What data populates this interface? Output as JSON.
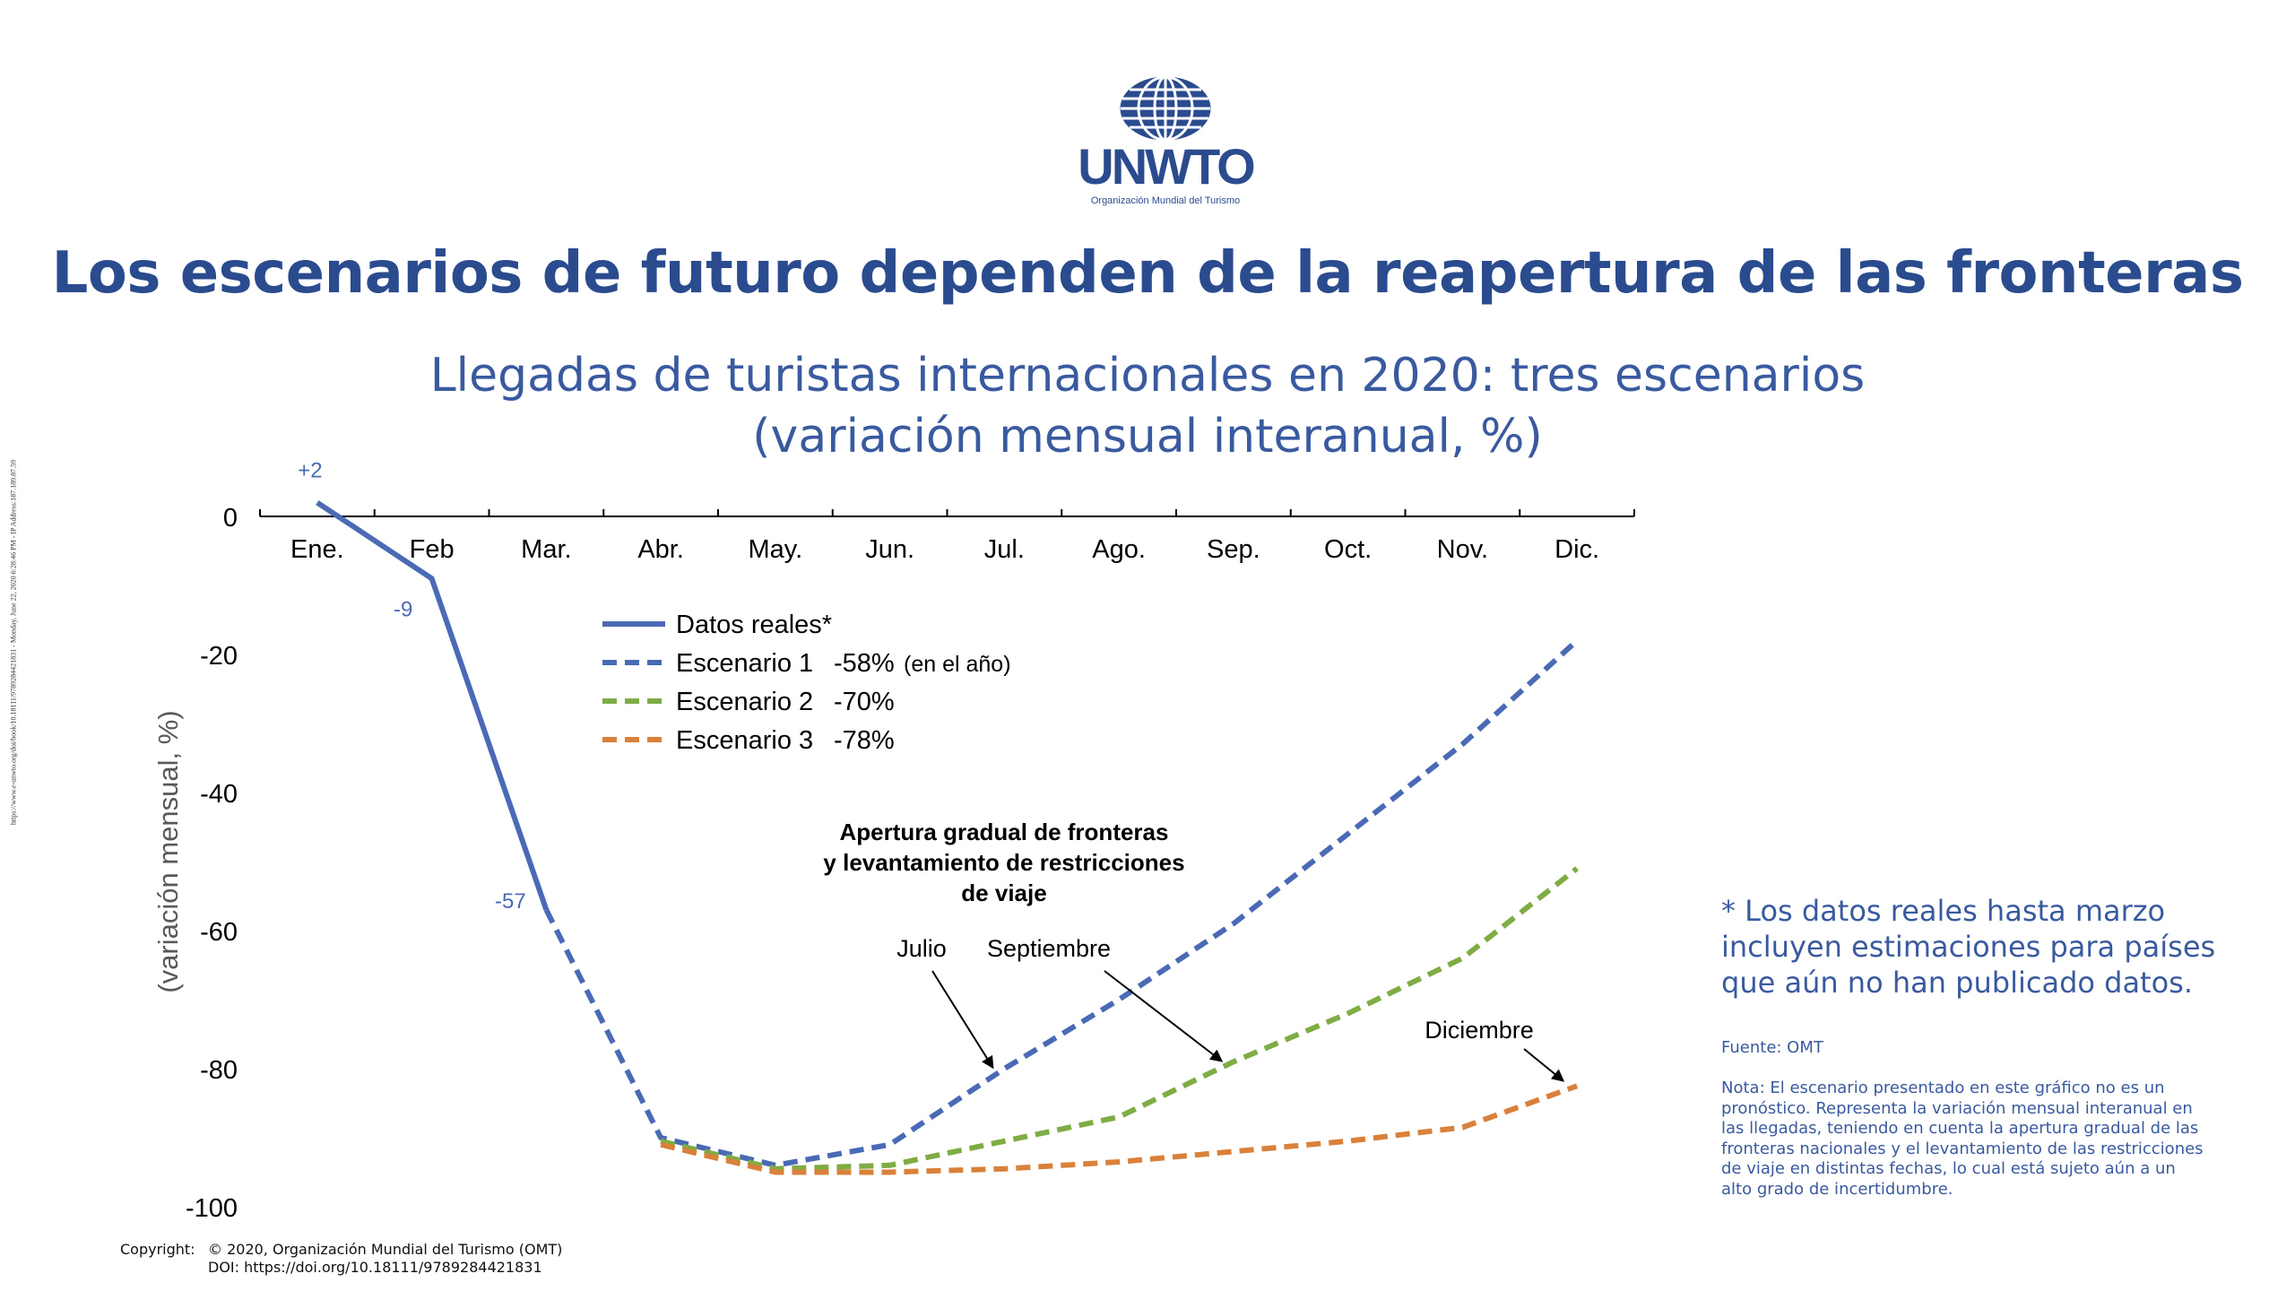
{
  "logo": {
    "name": "UNWTO",
    "subtitle": "Organización Mundial del Turismo"
  },
  "title": "Los escenarios de futuro dependen de la reapertura de las fronteras",
  "subtitle_line1": "Llegadas de turistas internacionales en 2020: tres escenarios",
  "subtitle_line2": "(variación mensual interanual, %)",
  "side_note": "* Los datos reales hasta marzo incluyen estimaciones para países que aún no han publicado datos.",
  "source": "Fuente: OMT",
  "nota": "Nota: El escenario presentado en este gráfico no es un pronóstico. Representa la variación mensual interanual en las llegadas, teniendo en cuenta la apertura gradual de las fronteras nacionales y el levantamiento de las restricciones de viaje en distintas fechas, lo cual está sujeto aún a un alto grado de incertidumbre.",
  "copyright_label": "Copyright:",
  "copyright_line1": "© 2020, Organización Mundial del Turismo (OMT)",
  "copyright_line2": "DOI: https://doi.org/10.18111/9789284421831",
  "vertical_url": "https://www.e-unwto.org/doi/book/10.18111/9789284421831 - Monday, June 22, 2020 6:28:46 PM - IP Address:187.189.87.59",
  "colors": {
    "primary": "#2b4b8f",
    "actual": "#4a6ab5",
    "s1": "#4a6ab5",
    "s2": "#7fac44",
    "s3": "#d9803a"
  },
  "chart_data": {
    "type": "line",
    "categories": [
      "Ene.",
      "Feb",
      "Mar.",
      "Abr.",
      "May.",
      "Jun.",
      "Jul.",
      "Ago.",
      "Sep.",
      "Oct.",
      "Nov.",
      "Dic."
    ],
    "ylabel": "(variación mensual, %)",
    "ylim": [
      -100,
      0
    ],
    "yticks": [
      0,
      -20,
      -40,
      -60,
      -80,
      -100
    ],
    "series": [
      {
        "name": "Datos reales*",
        "style": "solid",
        "color": "#4a6ab5",
        "values": [
          2,
          -9,
          -57,
          null,
          null,
          null,
          null,
          null,
          null,
          null,
          null,
          null
        ]
      },
      {
        "name": "Escenario 1",
        "pct": "-58%",
        "note": "(en el año)",
        "style": "dashed",
        "color": "#4a6ab5",
        "values": [
          null,
          null,
          -57,
          -90,
          -94,
          -91,
          -80,
          -70,
          -59,
          -46,
          -33,
          -18
        ]
      },
      {
        "name": "Escenario 2",
        "pct": "-70%",
        "style": "dashed",
        "color": "#7fac44",
        "values": [
          null,
          null,
          null,
          -90.5,
          -94.5,
          -94,
          -90.5,
          -87,
          -79,
          -72,
          -64,
          -51
        ]
      },
      {
        "name": "Escenario 3",
        "pct": "-78%",
        "style": "dashed",
        "color": "#d9803a",
        "values": [
          null,
          null,
          null,
          -91,
          -95,
          -95,
          -94.5,
          -93.5,
          -92,
          -90.5,
          -88.5,
          -82.5
        ]
      }
    ],
    "data_labels": [
      {
        "text": "+2",
        "index": 0,
        "value": 2
      },
      {
        "text": "-9",
        "index": 1,
        "value": -9
      },
      {
        "text": "-57",
        "index": 2,
        "value": -57
      }
    ],
    "annotation_title": [
      "Apertura gradual de fronteras",
      "y levantamiento de restricciones",
      "de viaje"
    ],
    "annotations": [
      {
        "text": "Julio",
        "series": 0
      },
      {
        "text": "Septiembre",
        "series": 1
      },
      {
        "text": "Diciembre",
        "series": 2
      }
    ]
  }
}
